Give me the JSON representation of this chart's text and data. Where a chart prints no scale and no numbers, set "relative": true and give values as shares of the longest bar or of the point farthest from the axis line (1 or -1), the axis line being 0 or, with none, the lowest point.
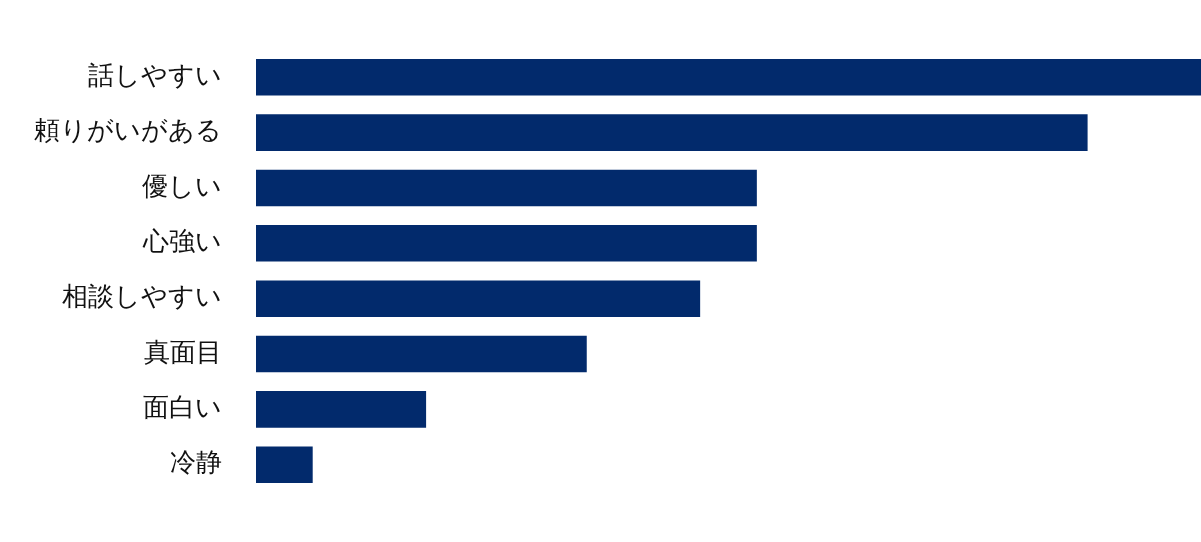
{
  "chart_data": {
    "type": "bar",
    "orientation": "horizontal",
    "relative": true,
    "categories": [
      "話しやすい",
      "頼りがいがある",
      "優しい",
      "心強い",
      "相談しやすい",
      "真面目",
      "面白い",
      "冷静"
    ],
    "values": [
      1,
      0.88,
      0.53,
      0.53,
      0.47,
      0.35,
      0.18,
      0.06
    ],
    "color": "#022a6c",
    "grid": false,
    "legend": false
  }
}
